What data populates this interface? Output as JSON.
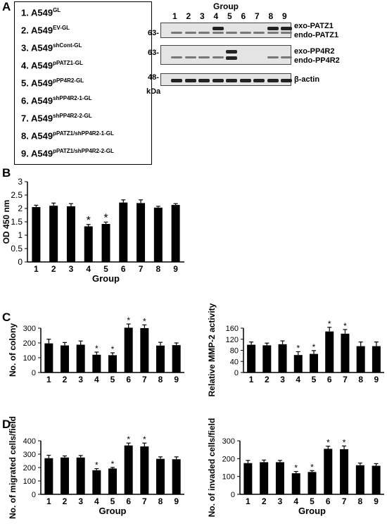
{
  "panels": {
    "A": "A",
    "B": "B",
    "C": "C",
    "D": "D"
  },
  "legend": [
    {
      "num": "1.",
      "base": "A549",
      "sup": "GL"
    },
    {
      "num": "2.",
      "base": "A549",
      "sup": "EV-GL"
    },
    {
      "num": "3.",
      "base": "A549",
      "sup": "shCont-GL"
    },
    {
      "num": "4.",
      "base": "A549",
      "sup": "pPATZ1-GL"
    },
    {
      "num": "5.",
      "base": "A549",
      "sup": "pPP4R2-GL"
    },
    {
      "num": "6.",
      "base": "A549",
      "sup": "shPP4R2-1-GL"
    },
    {
      "num": "7.",
      "base": "A549",
      "sup": "shPP4R2-2-GL"
    },
    {
      "num": "8.",
      "base": "A549",
      "sup": "pPATZ1/shPP4R2-1-GL"
    },
    {
      "num": "9.",
      "base": "A549",
      "sup": "pPATZ1/shPP4R2-2-GL"
    }
  ],
  "blot": {
    "group_title": "Group",
    "lanes": [
      "1",
      "2",
      "3",
      "4",
      "5",
      "6",
      "7",
      "8",
      "9"
    ],
    "mw": [
      "63-",
      "63-",
      "48-"
    ],
    "kda": "kDa",
    "labels": [
      "exo-PATZ1",
      "endo-PATZ1",
      "exo-PP4R2",
      "endo-PP4R2",
      "β-actin"
    ]
  },
  "chart_data": [
    {
      "id": "B",
      "type": "bar",
      "categories": [
        "1",
        "2",
        "3",
        "4",
        "5",
        "6",
        "7",
        "8",
        "9"
      ],
      "values": [
        2.05,
        2.1,
        2.08,
        1.33,
        1.42,
        2.22,
        2.2,
        2.03,
        2.13
      ],
      "errors": [
        0.07,
        0.1,
        0.1,
        0.07,
        0.07,
        0.1,
        0.12,
        0.05,
        0.05
      ],
      "stars": [
        false,
        false,
        false,
        true,
        true,
        false,
        false,
        false,
        false
      ],
      "ylabel": "OD 450 nm",
      "xlabel": "Group",
      "ylim": [
        0,
        3
      ],
      "yticks": [
        "0",
        "0.5",
        "1",
        "1.5",
        "2",
        "2.5",
        "3"
      ]
    },
    {
      "id": "C1",
      "type": "bar",
      "categories": [
        "1",
        "2",
        "3",
        "4",
        "5",
        "6",
        "7",
        "8",
        "9"
      ],
      "values": [
        197,
        183,
        188,
        120,
        117,
        303,
        300,
        182,
        185
      ],
      "errors": [
        28,
        20,
        25,
        18,
        16,
        25,
        22,
        22,
        15
      ],
      "stars": [
        false,
        false,
        false,
        true,
        true,
        true,
        true,
        false,
        false
      ],
      "ylabel": "No. of colony",
      "xlabel": "",
      "ylim": [
        0,
        300
      ],
      "yticks": [
        "0",
        "100",
        "200",
        "300"
      ]
    },
    {
      "id": "C2",
      "type": "bar",
      "categories": [
        "1",
        "2",
        "3",
        "4",
        "5",
        "6",
        "7",
        "8",
        "9"
      ],
      "values": [
        100,
        98,
        102,
        63,
        67,
        148,
        140,
        95,
        95
      ],
      "errors": [
        10,
        8,
        12,
        12,
        12,
        15,
        15,
        15,
        15
      ],
      "stars": [
        false,
        false,
        false,
        true,
        true,
        true,
        true,
        false,
        false
      ],
      "ylabel": "Relative MMP-2 activity",
      "xlabel": "",
      "ylim": [
        0,
        160
      ],
      "yticks": [
        "0",
        "40",
        "80",
        "120",
        "160"
      ]
    },
    {
      "id": "D1",
      "type": "bar",
      "categories": [
        "1",
        "2",
        "3",
        "4",
        "5",
        "6",
        "7",
        "8",
        "9"
      ],
      "values": [
        270,
        275,
        275,
        180,
        193,
        365,
        358,
        265,
        262
      ],
      "errors": [
        22,
        12,
        15,
        12,
        8,
        18,
        25,
        15,
        18
      ],
      "stars": [
        false,
        false,
        false,
        true,
        true,
        true,
        true,
        false,
        false
      ],
      "ylabel": "No. of migrated cells/field",
      "xlabel": "Group",
      "ylim": [
        0,
        400
      ],
      "yticks": [
        "0",
        "100",
        "200",
        "300",
        "400"
      ]
    },
    {
      "id": "D2",
      "type": "bar",
      "categories": [
        "1",
        "2",
        "3",
        "4",
        "5",
        "6",
        "7",
        "8",
        "9"
      ],
      "values": [
        175,
        180,
        180,
        118,
        125,
        255,
        253,
        163,
        160
      ],
      "errors": [
        15,
        12,
        10,
        10,
        8,
        15,
        18,
        12,
        12
      ],
      "stars": [
        false,
        false,
        false,
        true,
        true,
        true,
        true,
        false,
        false
      ],
      "ylabel": "No. of invaded cells/field",
      "xlabel": "Group",
      "ylim": [
        0,
        300
      ],
      "yticks": [
        "0",
        "100",
        "200",
        "300"
      ]
    }
  ]
}
